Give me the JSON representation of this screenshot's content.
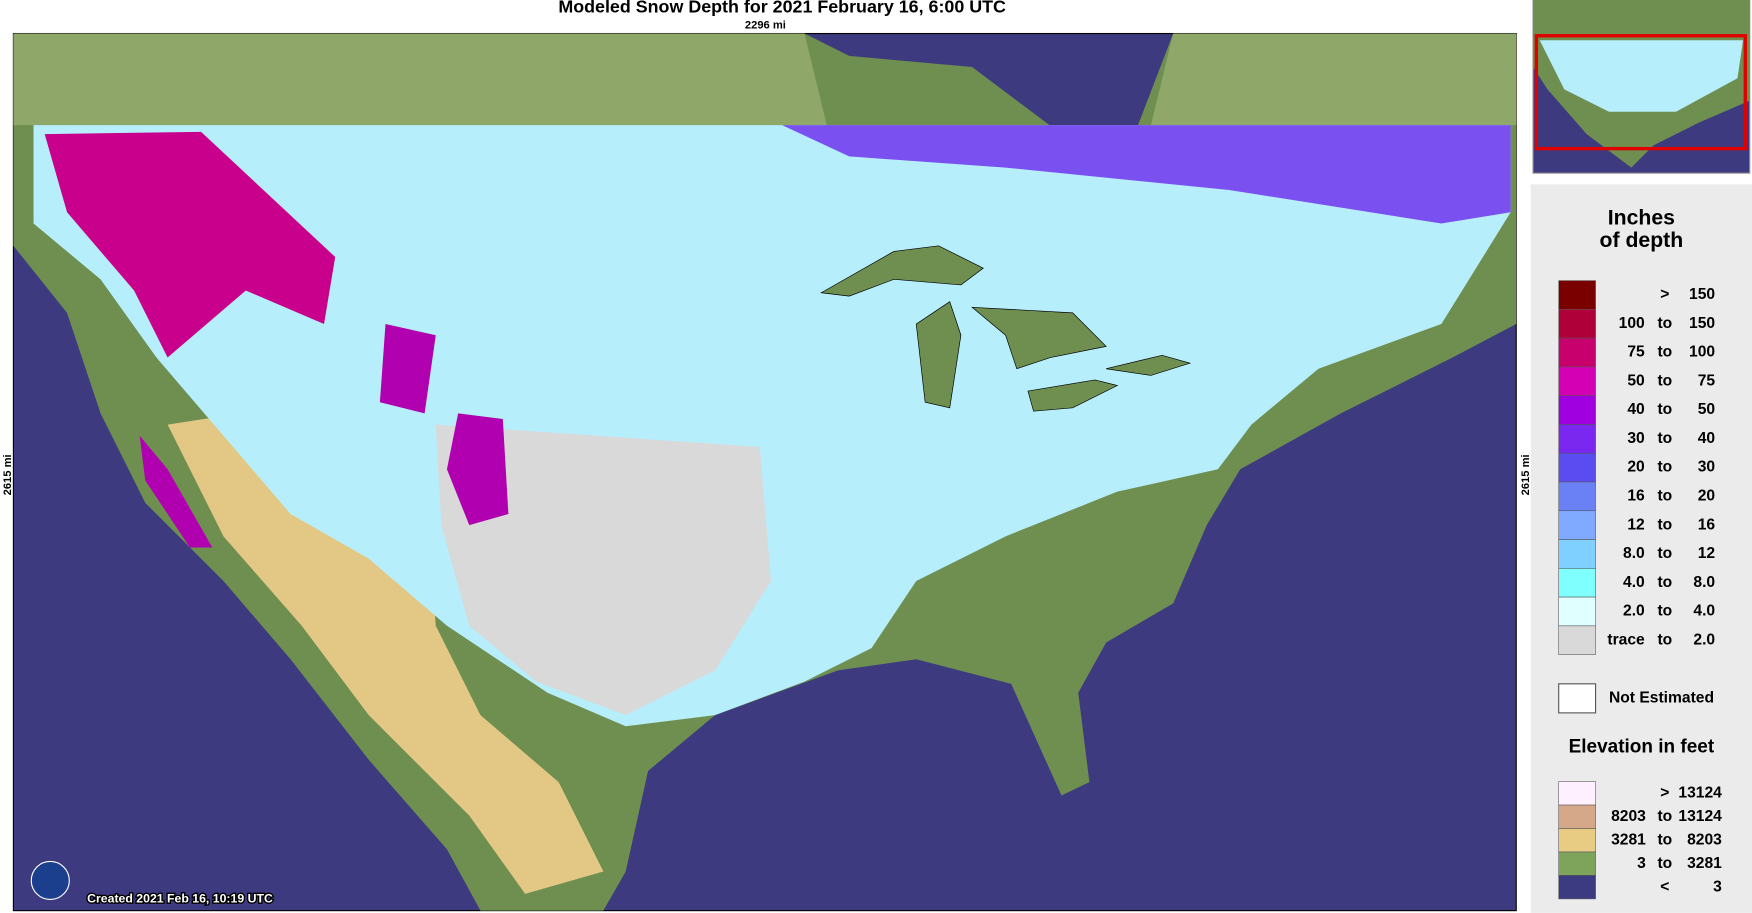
{
  "title": "Modeled Snow Depth for 2021 February 16, 6:00 UTC",
  "scale": {
    "width": "2296 mi",
    "height_left": "2615 mi",
    "height_right": "2615 mi"
  },
  "created": "Created 2021 Feb 16, 10:19 UTC",
  "legend": {
    "snow_depth": {
      "title_line1": "Inches",
      "title_line2": "of depth",
      "rows": [
        {
          "sep": ">",
          "to": "150",
          "color": "#7a0000"
        },
        {
          "from": "100",
          "sep": "to",
          "to": "150",
          "color": "#b0003a"
        },
        {
          "from": "75",
          "sep": "to",
          "to": "100",
          "color": "#c8006e"
        },
        {
          "from": "50",
          "sep": "to",
          "to": "75",
          "color": "#d400b4"
        },
        {
          "from": "40",
          "sep": "to",
          "to": "50",
          "color": "#a000e0"
        },
        {
          "from": "30",
          "sep": "to",
          "to": "40",
          "color": "#7a28f0"
        },
        {
          "from": "20",
          "sep": "to",
          "to": "30",
          "color": "#5a4cf0"
        },
        {
          "from": "16",
          "sep": "to",
          "to": "20",
          "color": "#6a80f5"
        },
        {
          "from": "12",
          "sep": "to",
          "to": "16",
          "color": "#80aaff"
        },
        {
          "from": "8.0",
          "sep": "to",
          "to": "12",
          "color": "#80d0ff"
        },
        {
          "from": "4.0",
          "sep": "to",
          "to": "8.0",
          "color": "#80ffff"
        },
        {
          "from": "2.0",
          "sep": "to",
          "to": "4.0",
          "color": "#e0ffff"
        },
        {
          "from": "trace",
          "sep": "to",
          "to": "2.0",
          "color": "#d9d9d9"
        }
      ]
    },
    "not_estimated": {
      "label": "Not Estimated",
      "color": "#ffffff"
    },
    "elevation": {
      "title": "Elevation in feet",
      "rows": [
        {
          "sep": ">",
          "to": "13124",
          "color": "#fff0ff"
        },
        {
          "from": "8203",
          "sep": "to",
          "to": "13124",
          "color": "#d4a888"
        },
        {
          "from": "3281",
          "sep": "to",
          "to": "8203",
          "color": "#e8cc84"
        },
        {
          "from": "3",
          "sep": "to",
          "to": "3281",
          "color": "#7ea45c"
        },
        {
          "sep": "<",
          "to": "3",
          "color": "#3c3a80"
        }
      ]
    }
  }
}
